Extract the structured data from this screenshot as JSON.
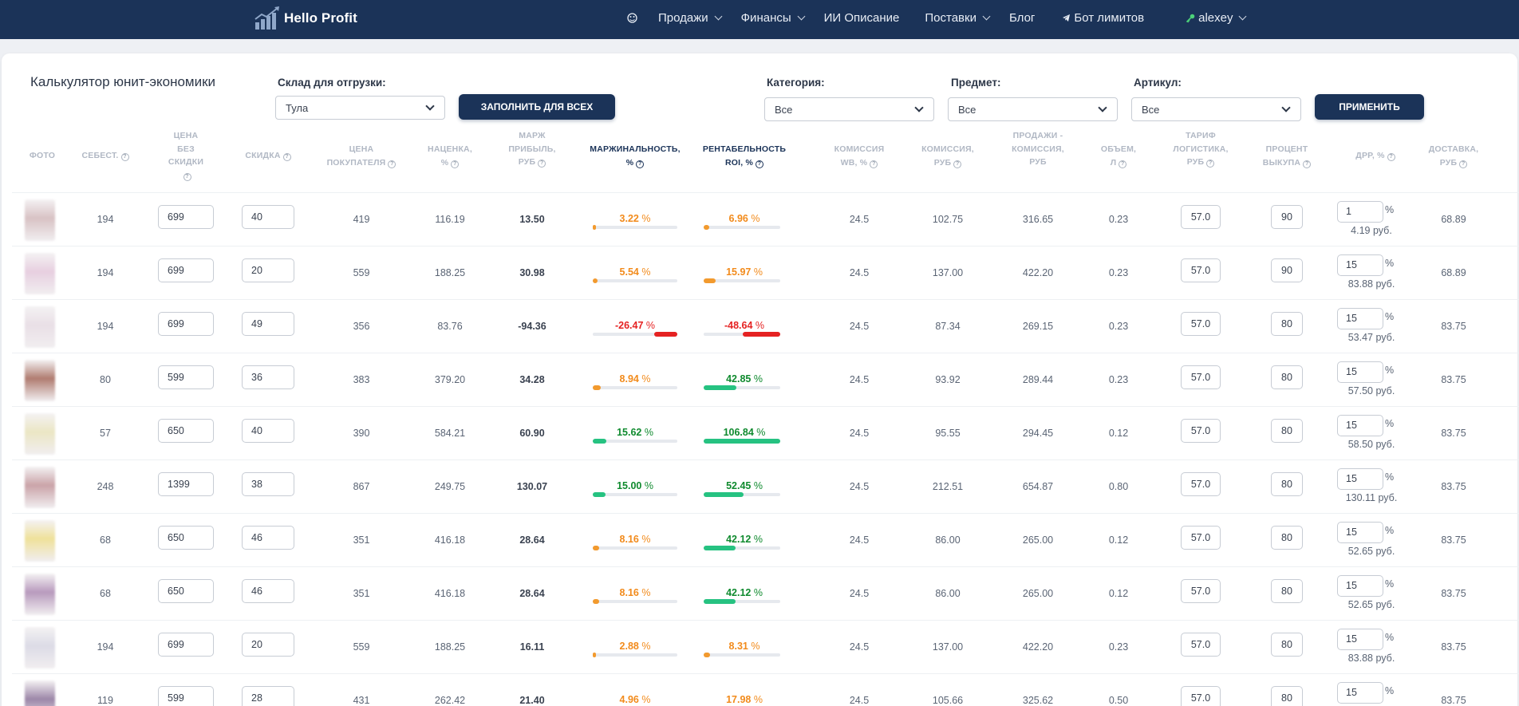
{
  "colors": {
    "nav_bg": "#1b3358",
    "orange": "#f28b1c",
    "green": "#0f8a2e",
    "green_bar": "#26c281",
    "red": "#e52222",
    "red_bar": "#e52222",
    "orange_bar": "#f29a2e"
  },
  "navbar": {
    "logo_text": "Hello Profit",
    "items": [
      {
        "icon": "palette-icon"
      },
      {
        "label": "Продажи",
        "dropdown": true
      },
      {
        "label": "Финансы",
        "dropdown": true
      },
      {
        "label": "ИИ Описание"
      },
      {
        "label": "Поставки",
        "dropdown": true
      },
      {
        "label": "Блог"
      },
      {
        "label": "Бот лимитов",
        "icon": "telegram-icon"
      },
      {
        "label": "alexey",
        "icon": "key-icon",
        "dropdown": true
      }
    ]
  },
  "page": {
    "title": "Калькулятор юнит-экономики",
    "warehouse_label": "Склад для отгрузки:",
    "warehouse_value": "Тула",
    "fill_all_button": "ЗАПОЛНИТЬ ДЛЯ ВСЕХ",
    "category_label": "Категория:",
    "category_value": "Все",
    "subject_label": "Предмет:",
    "subject_value": "Все",
    "article_label": "Артикул:",
    "article_value": "Все",
    "apply_button": "ПРИМЕНИТЬ"
  },
  "columns": [
    {
      "key": "photo",
      "lines": [
        "ФОТО"
      ],
      "help": false
    },
    {
      "key": "cost",
      "lines": [
        "СЕБЕСТ."
      ],
      "help": true
    },
    {
      "key": "price",
      "lines": [
        "ЦЕНА",
        "БЕЗ",
        "СКИДКИ"
      ],
      "help": true
    },
    {
      "key": "discount",
      "lines": [
        "СКИДКА"
      ],
      "help": true
    },
    {
      "key": "buyer_price",
      "lines": [
        "ЦЕНА",
        "ПОКУПАТЕЛЯ"
      ],
      "help": true
    },
    {
      "key": "markup",
      "lines": [
        "НАЦЕНКА,",
        "%"
      ],
      "help": true
    },
    {
      "key": "margin_profit",
      "lines": [
        "МАРЖ",
        "ПРИБЫЛЬ,",
        "РУБ"
      ],
      "help": true
    },
    {
      "key": "margin",
      "lines": [
        "МАРЖИНАЛЬНОСТЬ,",
        "%"
      ],
      "help": true
    },
    {
      "key": "roi",
      "lines": [
        "РЕНТАБЕЛЬНОСТЬ",
        "ROI, %"
      ],
      "help": true
    },
    {
      "key": "wb_commission",
      "lines": [
        "КОМИССИЯ",
        "WB, %"
      ],
      "help": true
    },
    {
      "key": "commission_rub",
      "lines": [
        "КОМИССИЯ,",
        "РУБ"
      ],
      "help": true
    },
    {
      "key": "sales_minus",
      "lines": [
        "ПРОДАЖИ -",
        "КОМИССИЯ,",
        "РУБ"
      ],
      "help": false
    },
    {
      "key": "volume",
      "lines": [
        "ОБЪЕМ,",
        "Л"
      ],
      "help": true
    },
    {
      "key": "logistics",
      "lines": [
        "ТАРИФ",
        "ЛОГИСТИКА,",
        "РУБ"
      ],
      "help": true
    },
    {
      "key": "buyout",
      "lines": [
        "ПРОЦЕНТ",
        "ВЫКУПА"
      ],
      "help": true
    },
    {
      "key": "drr",
      "lines": [
        "ДРР, %"
      ],
      "help": true
    },
    {
      "key": "delivery",
      "lines": [
        "ДОСТАВКА,",
        "РУБ"
      ],
      "help": true
    }
  ],
  "rows": [
    {
      "photo": "#d8c2c4",
      "cost": "194",
      "price": "699",
      "discount": "40",
      "buyer_price": "419",
      "markup": "116.19",
      "margin_profit": "13.50",
      "margin": "3.22",
      "margin_status": "orange",
      "margin_frac": 0.03,
      "roi": "6.96",
      "roi_status": "orange",
      "roi_frac": 0.07,
      "wb_commission": "24.5",
      "commission_rub": "102.75",
      "sales_minus": "316.65",
      "volume": "0.23",
      "logistics": "57.0",
      "buyout": "90",
      "drr": "1",
      "drr_rub": "4.19 руб.",
      "delivery": "68.89"
    },
    {
      "photo": "#e7cfe0",
      "cost": "194",
      "price": "699",
      "discount": "20",
      "buyer_price": "559",
      "markup": "188.25",
      "margin_profit": "30.98",
      "margin": "5.54",
      "margin_status": "orange",
      "margin_frac": 0.055,
      "roi": "15.97",
      "roi_status": "orange",
      "roi_frac": 0.16,
      "wb_commission": "24.5",
      "commission_rub": "137.00",
      "sales_minus": "422.20",
      "volume": "0.23",
      "logistics": "57.0",
      "buyout": "90",
      "drr": "15",
      "drr_rub": "83.88 руб.",
      "delivery": "68.89"
    },
    {
      "photo": "#e9dfe6",
      "cost": "194",
      "price": "699",
      "discount": "49",
      "buyer_price": "356",
      "markup": "83.76",
      "margin_profit": "-94.36",
      "margin": "-26.47",
      "margin_status": "red",
      "margin_frac": -0.27,
      "roi": "-48.64",
      "roi_status": "red",
      "roi_frac": -0.49,
      "wb_commission": "24.5",
      "commission_rub": "87.34",
      "sales_minus": "269.15",
      "volume": "0.23",
      "logistics": "57.0",
      "buyout": "80",
      "drr": "15",
      "drr_rub": "53.47 руб.",
      "delivery": "83.75"
    },
    {
      "photo": "#b07c70",
      "cost": "80",
      "price": "599",
      "discount": "36",
      "buyer_price": "383",
      "markup": "379.20",
      "margin_profit": "34.28",
      "margin": "8.94",
      "margin_status": "orange",
      "margin_frac": 0.09,
      "roi": "42.85",
      "roi_status": "green",
      "roi_frac": 0.43,
      "wb_commission": "24.5",
      "commission_rub": "93.92",
      "sales_minus": "289.44",
      "volume": "0.23",
      "logistics": "57.0",
      "buyout": "80",
      "drr": "15",
      "drr_rub": "57.50 руб.",
      "delivery": "83.75"
    },
    {
      "photo": "#ebe6c4",
      "cost": "57",
      "price": "650",
      "discount": "40",
      "buyer_price": "390",
      "markup": "584.21",
      "margin_profit": "60.90",
      "margin": "15.62",
      "margin_status": "green",
      "margin_frac": 0.156,
      "roi": "106.84",
      "roi_status": "green",
      "roi_frac": 1.0,
      "wb_commission": "24.5",
      "commission_rub": "95.55",
      "sales_minus": "294.45",
      "volume": "0.12",
      "logistics": "57.0",
      "buyout": "80",
      "drr": "15",
      "drr_rub": "58.50 руб.",
      "delivery": "83.75"
    },
    {
      "photo": "#caa3a8",
      "cost": "248",
      "price": "1399",
      "discount": "38",
      "buyer_price": "867",
      "markup": "249.75",
      "margin_profit": "130.07",
      "margin": "15.00",
      "margin_status": "green",
      "margin_frac": 0.15,
      "roi": "52.45",
      "roi_status": "green",
      "roi_frac": 0.52,
      "wb_commission": "24.5",
      "commission_rub": "212.51",
      "sales_minus": "654.87",
      "volume": "0.80",
      "logistics": "57.0",
      "buyout": "80",
      "drr": "15",
      "drr_rub": "130.11 руб.",
      "delivery": "83.75"
    },
    {
      "photo": "#efe19a",
      "cost": "68",
      "price": "650",
      "discount": "46",
      "buyer_price": "351",
      "markup": "416.18",
      "margin_profit": "28.64",
      "margin": "8.16",
      "margin_status": "orange",
      "margin_frac": 0.08,
      "roi": "42.12",
      "roi_status": "green",
      "roi_frac": 0.42,
      "wb_commission": "24.5",
      "commission_rub": "86.00",
      "sales_minus": "265.00",
      "volume": "0.12",
      "logistics": "57.0",
      "buyout": "80",
      "drr": "15",
      "drr_rub": "52.65 руб.",
      "delivery": "83.75"
    },
    {
      "photo": "#b89abd",
      "cost": "68",
      "price": "650",
      "discount": "46",
      "buyer_price": "351",
      "markup": "416.18",
      "margin_profit": "28.64",
      "margin": "8.16",
      "margin_status": "orange",
      "margin_frac": 0.08,
      "roi": "42.12",
      "roi_status": "green",
      "roi_frac": 0.42,
      "wb_commission": "24.5",
      "commission_rub": "86.00",
      "sales_minus": "265.00",
      "volume": "0.12",
      "logistics": "57.0",
      "buyout": "80",
      "drr": "15",
      "drr_rub": "52.65 руб.",
      "delivery": "83.75"
    },
    {
      "photo": "#dcdbe6",
      "cost": "194",
      "price": "699",
      "discount": "20",
      "buyer_price": "559",
      "markup": "188.25",
      "margin_profit": "16.11",
      "margin": "2.88",
      "margin_status": "orange",
      "margin_frac": 0.03,
      "roi": "8.31",
      "roi_status": "orange",
      "roi_frac": 0.08,
      "wb_commission": "24.5",
      "commission_rub": "137.00",
      "sales_minus": "422.20",
      "volume": "0.23",
      "logistics": "57.0",
      "buyout": "80",
      "drr": "15",
      "drr_rub": "83.88 руб.",
      "delivery": "83.75"
    },
    {
      "photo": "#9c86a8",
      "cost": "119",
      "price": "599",
      "discount": "28",
      "buyer_price": "431",
      "markup": "262.42",
      "margin_profit": "21.40",
      "margin": "4.96",
      "margin_status": "orange",
      "margin_frac": 0.05,
      "roi": "17.98",
      "roi_status": "orange",
      "roi_frac": 0.18,
      "wb_commission": "24.5",
      "commission_rub": "105.66",
      "sales_minus": "325.62",
      "volume": "0.50",
      "logistics": "57.0",
      "buyout": "80",
      "drr": "15",
      "drr_rub": "",
      "delivery": "83.75"
    }
  ]
}
